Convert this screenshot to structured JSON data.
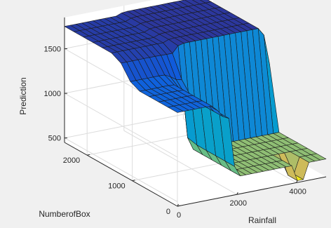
{
  "chart_data": {
    "type": "surface",
    "title": "",
    "xlabel": "Rainfall",
    "ylabel": "NumberofBox",
    "zlabel": "Prediction",
    "xlim": [
      0,
      5000
    ],
    "ylim": [
      0,
      2500
    ],
    "zlim": [
      450,
      1850
    ],
    "x_ticks": [
      {
        "value": 0,
        "label": "0"
      },
      {
        "value": 2000,
        "label": "2000"
      },
      {
        "value": 4000,
        "label": "4000"
      }
    ],
    "y_ticks": [
      {
        "value": 0,
        "label": "0"
      },
      {
        "value": 1000,
        "label": "1000"
      },
      {
        "value": 2000,
        "label": "2000"
      }
    ],
    "z_ticks": [
      {
        "value": 500,
        "label": "500"
      },
      {
        "value": 1000,
        "label": "1000"
      },
      {
        "value": 1500,
        "label": "1500"
      }
    ],
    "grid": true,
    "colormap": "parula",
    "surface_regions": [
      {
        "region": "Rainfall 0–1900, NumberofBox 1250–2500 (back-left plateau)",
        "prediction": 1750
      },
      {
        "region": "Rainfall 0–1900, NumberofBox 0–1250 (front-left)",
        "prediction": 1500
      },
      {
        "region": "Rainfall 1900–5000, NumberofBox 0–1200 (front trough)",
        "prediction": 650
      },
      {
        "region": "Rainfall 1900–4800, NumberofBox 1200–2500 (back plateau)",
        "prediction": 1780
      },
      {
        "region": "Rainfall 4000–4250, NumberofBox 0–300 (deep notch)",
        "prediction": 470
      },
      {
        "region": "Rainfall 4800–5000, NumberofBox 1200–2500 (back-right corner)",
        "prediction": 1350
      }
    ]
  }
}
